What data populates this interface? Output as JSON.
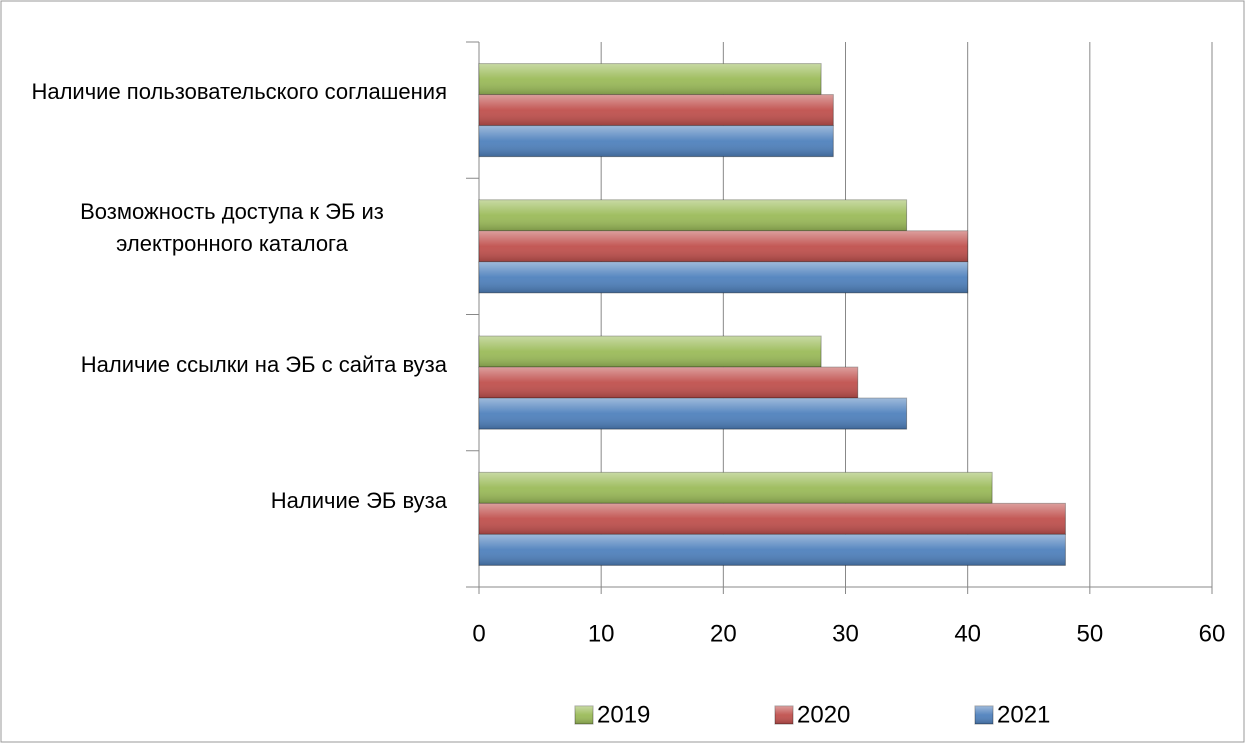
{
  "chart_data": {
    "type": "bar",
    "orientation": "horizontal",
    "categories": [
      "Наличие пользовательского соглашения",
      "Возможность доступа к ЭБ из электронного каталога",
      "Наличие ссылки на ЭБ с сайта вуза",
      "Наличие ЭБ вуза"
    ],
    "series": [
      {
        "name": "2019",
        "color": "#9bbb59",
        "values": [
          28,
          35,
          28,
          42
        ]
      },
      {
        "name": "2020",
        "color": "#c0504d",
        "values": [
          29,
          40,
          31,
          48
        ]
      },
      {
        "name": "2021",
        "color": "#4f81bd",
        "values": [
          29,
          40,
          35,
          48
        ]
      }
    ],
    "xlim": [
      0,
      60
    ],
    "xticks": [
      0,
      10,
      20,
      30,
      40,
      50,
      60
    ],
    "grid": true,
    "legend": "bottom"
  }
}
